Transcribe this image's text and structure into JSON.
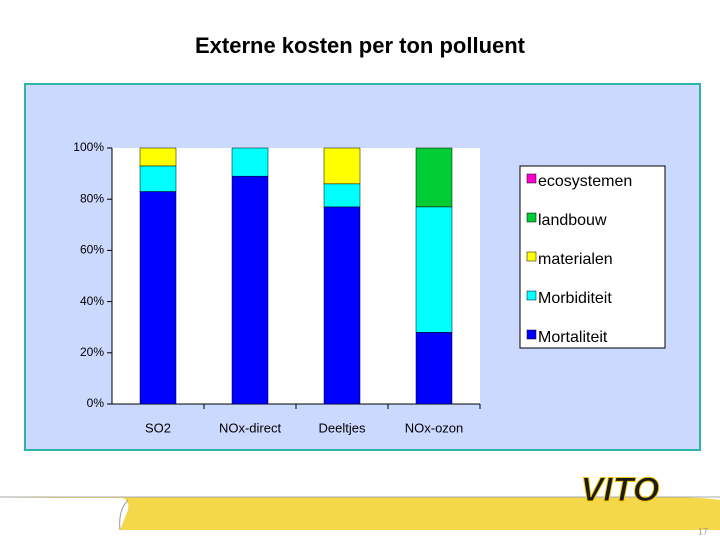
{
  "chart_data": {
    "type": "bar",
    "stacked": true,
    "title": "Externe kosten per ton polluent",
    "categories": [
      "SO2",
      "NOx-direct",
      "Deeltjes",
      "NOx-ozon"
    ],
    "series": [
      {
        "name": "Mortaliteit",
        "color": "#0000ff",
        "values": [
          83,
          89,
          77,
          28
        ]
      },
      {
        "name": "Morbiditeit",
        "color": "#00ffff",
        "values": [
          10,
          11,
          9,
          49
        ]
      },
      {
        "name": "materialen",
        "color": "#ffff00",
        "values": [
          7,
          0,
          14,
          0
        ]
      },
      {
        "name": "landbouw",
        "color": "#00cc33",
        "values": [
          0,
          0,
          0,
          23
        ]
      },
      {
        "name": "ecosystemen",
        "color": "#ff00cc",
        "values": [
          0,
          0,
          0,
          0
        ]
      }
    ],
    "ylim": [
      0,
      100
    ],
    "yticks": [
      {
        "value": 0,
        "label": "0%"
      },
      {
        "value": 20,
        "label": "20%"
      },
      {
        "value": 40,
        "label": "40%"
      },
      {
        "value": 60,
        "label": "60%"
      },
      {
        "value": 80,
        "label": "80%"
      },
      {
        "value": 100,
        "label": "100%"
      }
    ],
    "legend": "right"
  },
  "footer": {
    "logo": "VITO",
    "page_number": "17"
  }
}
